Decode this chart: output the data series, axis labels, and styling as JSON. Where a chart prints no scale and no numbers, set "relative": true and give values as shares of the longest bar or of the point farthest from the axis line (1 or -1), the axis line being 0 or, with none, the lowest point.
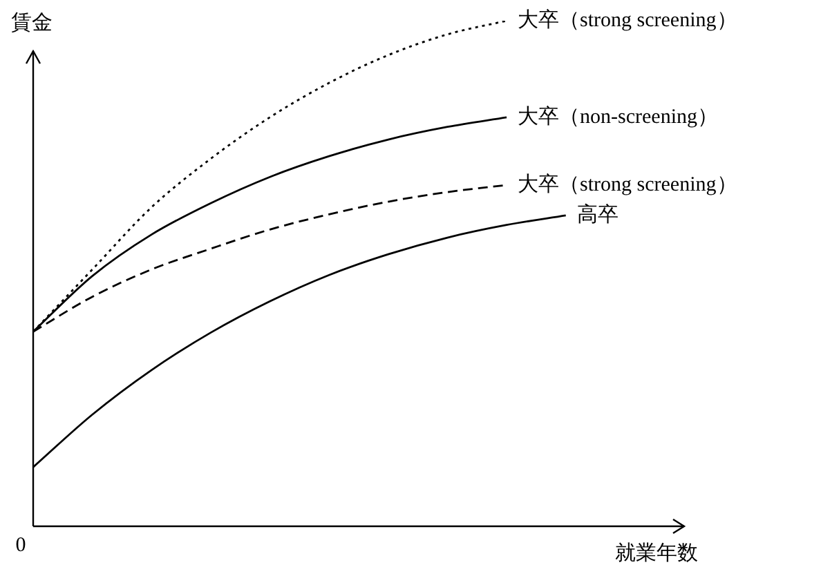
{
  "chart_data": {
    "type": "line",
    "relative": true,
    "xlabel": "就業年数",
    "ylabel": "賃金",
    "annotations": [
      "0"
    ],
    "categories": [
      null,
      null,
      null,
      null,
      null,
      null,
      null,
      null,
      null,
      null,
      null,
      null
    ],
    "series": [
      {
        "name": "大卒（strong screening）",
        "color": "#000000",
        "line_style": "dotted",
        "values": [
          0.385,
          0.508,
          0.631,
          0.727,
          0.809,
          0.877,
          0.932,
          0.973,
          1.0,
          null,
          null,
          null
        ]
      },
      {
        "name": "大卒（non-screening）",
        "color": "#000000",
        "line_style": "solid",
        "values": [
          0.385,
          0.495,
          0.577,
          0.639,
          0.691,
          0.732,
          0.765,
          0.79,
          0.809,
          null,
          null,
          null
        ]
      },
      {
        "name": "大卒（strong screening）",
        "color": "#000000",
        "line_style": "dashed",
        "values": [
          0.385,
          0.454,
          0.508,
          0.549,
          0.587,
          0.617,
          0.642,
          0.661,
          0.675,
          null,
          null,
          null
        ]
      },
      {
        "name": "高卒",
        "color": "#000000",
        "line_style": "solid",
        "values": [
          0.117,
          0.221,
          0.309,
          0.383,
          0.445,
          0.497,
          0.538,
          0.571,
          0.596,
          0.615,
          null,
          null
        ]
      }
    ],
    "marker": "none"
  }
}
